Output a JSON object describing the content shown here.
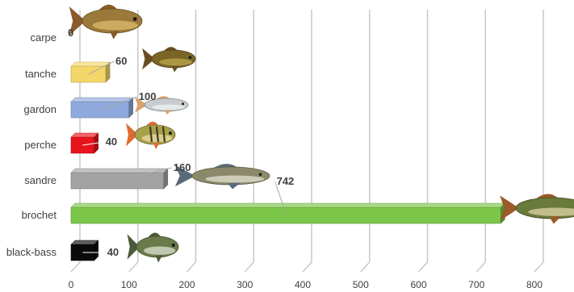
{
  "chart_data": {
    "type": "bar",
    "orientation": "horizontal",
    "categories": [
      "carpe",
      "tanche",
      "gardon",
      "perche",
      "sandre",
      "brochet",
      "black-bass"
    ],
    "values": [
      0,
      60,
      100,
      40,
      160,
      742,
      40
    ],
    "data_labels": [
      "0",
      "60",
      "100",
      "40",
      "160",
      "742",
      "40"
    ],
    "bar_colors": [
      "#e8e8e8",
      "#f5d66a",
      "#8fa9dc",
      "#e8141c",
      "#a3a3a3",
      "#7cc64a",
      "#0a0a0a"
    ],
    "x_ticks": [
      "0",
      "100",
      "200",
      "300",
      "400",
      "500",
      "600",
      "700",
      "800"
    ],
    "xlim": [
      0,
      800
    ],
    "grid": true,
    "legend": "none",
    "title": "",
    "xlabel": "",
    "ylabel": "",
    "icons": [
      "carp-fish-icon",
      "tench-fish-icon",
      "roach-fish-icon",
      "perch-fish-icon",
      "zander-fish-icon",
      "pike-fish-icon",
      "black-bass-fish-icon"
    ]
  }
}
